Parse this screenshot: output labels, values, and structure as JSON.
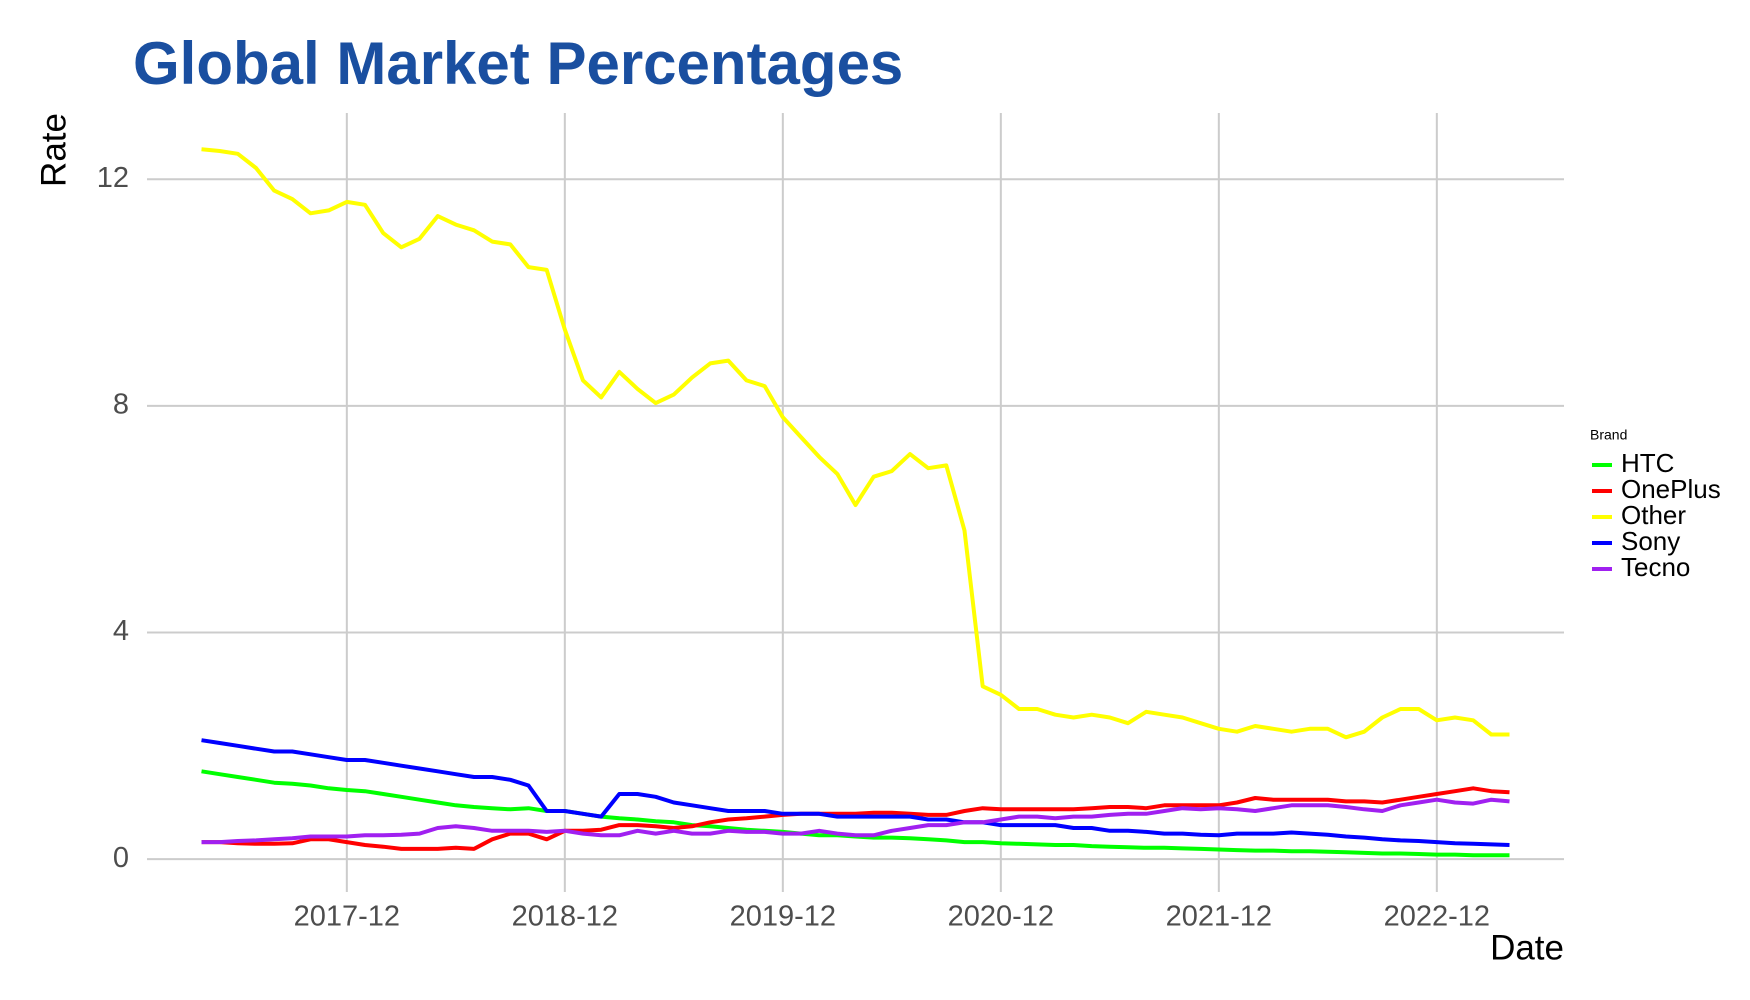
{
  "chart_data": {
    "type": "line",
    "title": "Global Market Percentages",
    "x_label": "Date",
    "y_label": "Rate",
    "legend_title": "Brand",
    "legend": "right",
    "grid": true,
    "x": [
      "2017-04",
      "2017-05",
      "2017-06",
      "2017-07",
      "2017-08",
      "2017-09",
      "2017-10",
      "2017-11",
      "2017-12",
      "2018-01",
      "2018-02",
      "2018-03",
      "2018-04",
      "2018-05",
      "2018-06",
      "2018-07",
      "2018-08",
      "2018-09",
      "2018-10",
      "2018-11",
      "2018-12",
      "2019-01",
      "2019-02",
      "2019-03",
      "2019-04",
      "2019-05",
      "2019-06",
      "2019-07",
      "2019-08",
      "2019-09",
      "2019-10",
      "2019-11",
      "2019-12",
      "2020-01",
      "2020-02",
      "2020-03",
      "2020-04",
      "2020-05",
      "2020-06",
      "2020-07",
      "2020-08",
      "2020-09",
      "2020-10",
      "2020-11",
      "2020-12",
      "2021-01",
      "2021-02",
      "2021-03",
      "2021-04",
      "2021-05",
      "2021-06",
      "2021-07",
      "2021-08",
      "2021-09",
      "2021-10",
      "2021-11",
      "2021-12",
      "2022-01",
      "2022-02",
      "2022-03",
      "2022-04",
      "2022-05",
      "2022-06",
      "2022-07",
      "2022-08",
      "2022-09",
      "2022-10",
      "2022-11",
      "2022-12",
      "2023-01",
      "2023-02",
      "2023-03",
      "2023-04"
    ],
    "xlim": [
      "2017-01",
      "2023-07"
    ],
    "xticks": [
      "2017-12",
      "2018-12",
      "2019-12",
      "2020-12",
      "2021-12",
      "2022-12"
    ],
    "ylim": [
      -0.58,
      13.17
    ],
    "yticks": [
      0,
      4,
      8,
      12
    ],
    "series": [
      {
        "name": "HTC",
        "color": "#00ff00",
        "values": [
          1.55,
          1.5,
          1.45,
          1.4,
          1.35,
          1.33,
          1.3,
          1.25,
          1.22,
          1.2,
          1.15,
          1.1,
          1.05,
          1.0,
          0.95,
          0.92,
          0.9,
          0.88,
          0.9,
          0.85,
          0.85,
          0.8,
          0.75,
          0.72,
          0.7,
          0.67,
          0.65,
          0.6,
          0.58,
          0.55,
          0.52,
          0.5,
          0.48,
          0.45,
          0.42,
          0.42,
          0.4,
          0.38,
          0.38,
          0.37,
          0.35,
          0.33,
          0.3,
          0.3,
          0.28,
          0.27,
          0.26,
          0.25,
          0.25,
          0.23,
          0.22,
          0.21,
          0.2,
          0.2,
          0.19,
          0.18,
          0.17,
          0.16,
          0.15,
          0.15,
          0.14,
          0.14,
          0.13,
          0.12,
          0.11,
          0.1,
          0.1,
          0.09,
          0.08,
          0.08,
          0.07,
          0.07,
          0.07
        ]
      },
      {
        "name": "OnePlus",
        "color": "#ff0000",
        "values": [
          0.3,
          0.3,
          0.28,
          0.27,
          0.27,
          0.28,
          0.35,
          0.35,
          0.3,
          0.25,
          0.22,
          0.18,
          0.18,
          0.18,
          0.2,
          0.18,
          0.35,
          0.45,
          0.45,
          0.35,
          0.5,
          0.5,
          0.52,
          0.6,
          0.6,
          0.58,
          0.55,
          0.58,
          0.65,
          0.7,
          0.72,
          0.75,
          0.78,
          0.8,
          0.8,
          0.8,
          0.8,
          0.82,
          0.82,
          0.8,
          0.78,
          0.78,
          0.85,
          0.9,
          0.88,
          0.88,
          0.88,
          0.88,
          0.88,
          0.9,
          0.92,
          0.92,
          0.9,
          0.95,
          0.95,
          0.95,
          0.95,
          1.0,
          1.08,
          1.05,
          1.05,
          1.05,
          1.05,
          1.02,
          1.02,
          1.0,
          1.05,
          1.1,
          1.15,
          1.2,
          1.25,
          1.2,
          1.18
        ]
      },
      {
        "name": "Other",
        "color": "#ffff00",
        "values": [
          12.53,
          12.5,
          12.45,
          12.2,
          11.8,
          11.65,
          11.4,
          11.45,
          11.6,
          11.55,
          11.05,
          10.8,
          10.95,
          11.35,
          11.2,
          11.1,
          10.9,
          10.85,
          10.45,
          10.4,
          9.35,
          8.45,
          8.15,
          8.6,
          8.3,
          8.05,
          8.2,
          8.5,
          8.75,
          8.8,
          8.45,
          8.35,
          7.8,
          7.45,
          7.1,
          6.8,
          6.25,
          6.75,
          6.85,
          7.15,
          6.9,
          6.95,
          5.8,
          3.05,
          2.9,
          2.65,
          2.65,
          2.55,
          2.5,
          2.55,
          2.5,
          2.4,
          2.6,
          2.55,
          2.5,
          2.4,
          2.3,
          2.25,
          2.35,
          2.3,
          2.25,
          2.3,
          2.3,
          2.15,
          2.25,
          2.5,
          2.65,
          2.65,
          2.45,
          2.5,
          2.45,
          2.2,
          2.2
        ]
      },
      {
        "name": "Sony",
        "color": "#0000ff",
        "values": [
          2.1,
          2.05,
          2.0,
          1.95,
          1.9,
          1.9,
          1.85,
          1.8,
          1.75,
          1.75,
          1.7,
          1.65,
          1.6,
          1.55,
          1.5,
          1.45,
          1.45,
          1.4,
          1.3,
          0.85,
          0.85,
          0.8,
          0.75,
          1.15,
          1.15,
          1.1,
          1.0,
          0.95,
          0.9,
          0.85,
          0.85,
          0.85,
          0.8,
          0.8,
          0.8,
          0.75,
          0.75,
          0.75,
          0.75,
          0.75,
          0.7,
          0.7,
          0.65,
          0.65,
          0.6,
          0.6,
          0.6,
          0.6,
          0.55,
          0.55,
          0.5,
          0.5,
          0.48,
          0.45,
          0.45,
          0.43,
          0.42,
          0.45,
          0.45,
          0.45,
          0.47,
          0.45,
          0.43,
          0.4,
          0.38,
          0.35,
          0.33,
          0.32,
          0.3,
          0.28,
          0.27,
          0.26,
          0.25
        ]
      },
      {
        "name": "Tecno",
        "color": "#a020f0",
        "values": [
          0.3,
          0.3,
          0.32,
          0.33,
          0.35,
          0.37,
          0.4,
          0.4,
          0.4,
          0.42,
          0.42,
          0.43,
          0.45,
          0.55,
          0.58,
          0.55,
          0.5,
          0.5,
          0.5,
          0.48,
          0.5,
          0.45,
          0.42,
          0.42,
          0.5,
          0.45,
          0.5,
          0.45,
          0.45,
          0.5,
          0.48,
          0.48,
          0.45,
          0.45,
          0.5,
          0.45,
          0.42,
          0.42,
          0.5,
          0.55,
          0.6,
          0.6,
          0.65,
          0.65,
          0.7,
          0.75,
          0.75,
          0.72,
          0.75,
          0.75,
          0.78,
          0.8,
          0.8,
          0.85,
          0.9,
          0.88,
          0.9,
          0.88,
          0.85,
          0.9,
          0.95,
          0.95,
          0.95,
          0.92,
          0.88,
          0.85,
          0.95,
          1.0,
          1.05,
          1.0,
          0.98,
          1.05,
          1.02
        ]
      }
    ]
  }
}
